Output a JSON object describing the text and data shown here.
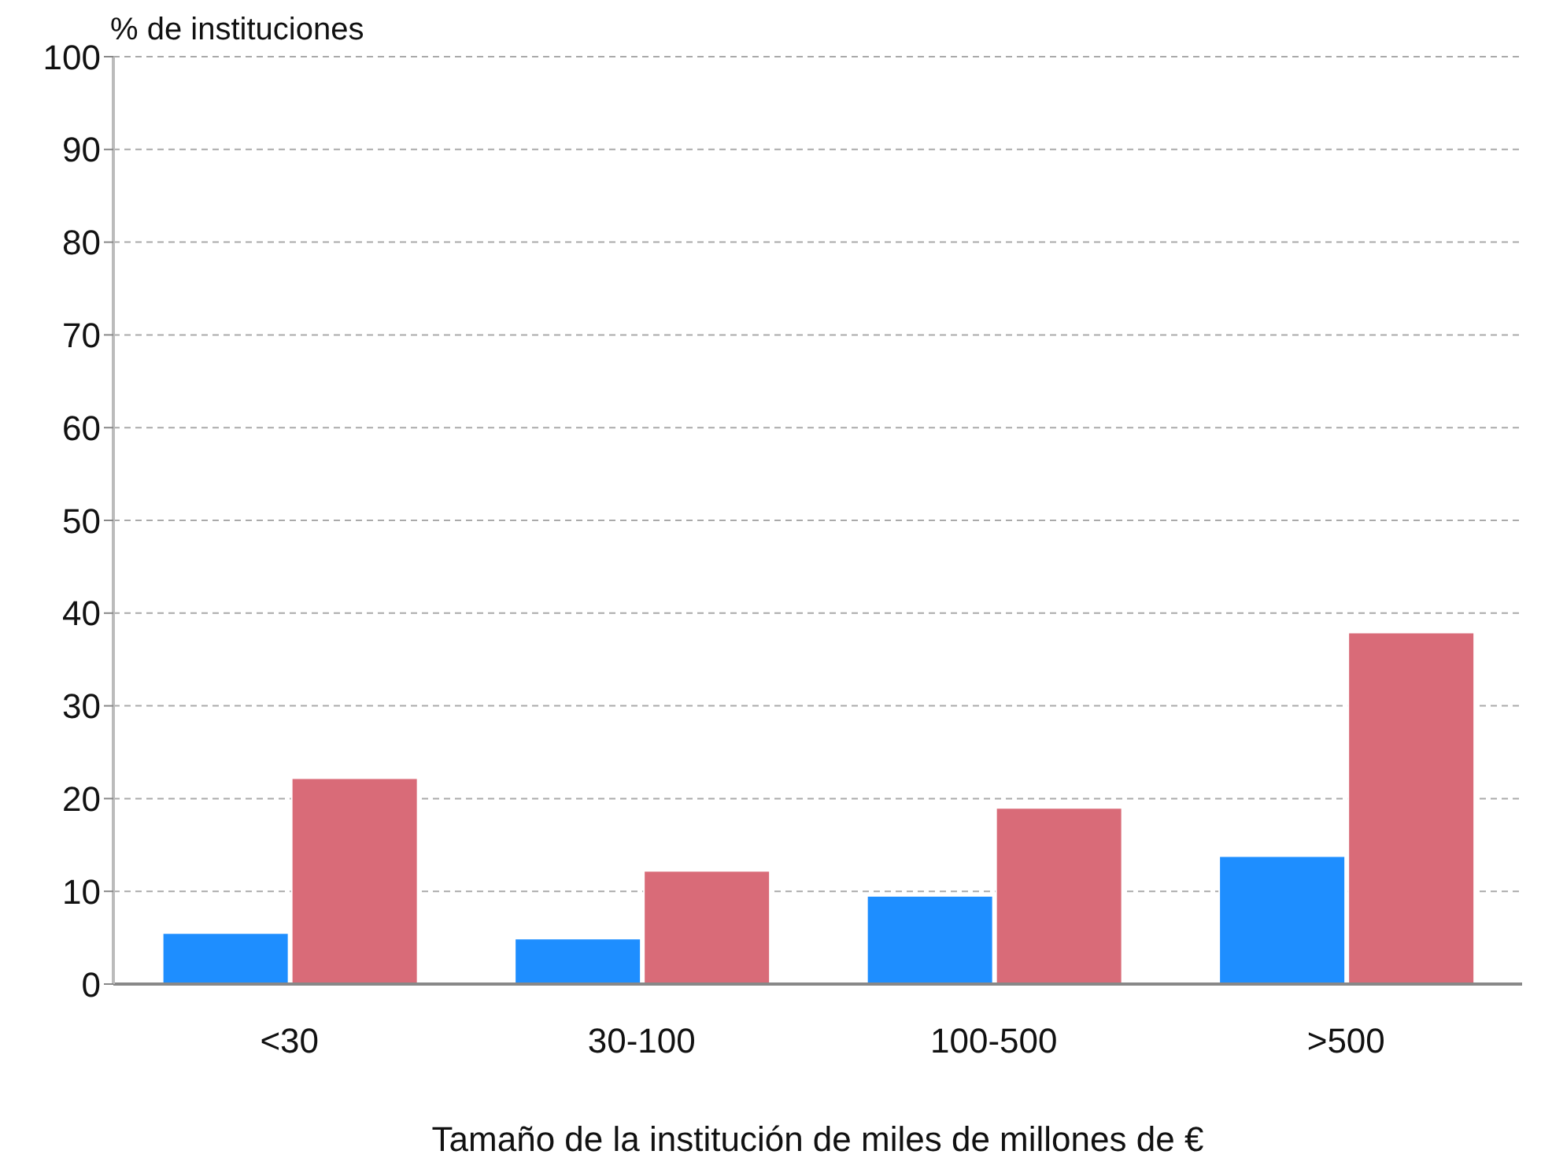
{
  "chart_data": {
    "type": "bar",
    "ylabel": "% de instituciones",
    "xlabel": "Tamaño de la institución de miles de millones de €",
    "categories": [
      "<30",
      "30-100",
      "100-500",
      ">500"
    ],
    "series": [
      {
        "color": "#1e8eff",
        "values": [
          5.5,
          4.9,
          9.5,
          13.8
        ]
      },
      {
        "color": "#d96b78",
        "values": [
          22.2,
          12.2,
          19.0,
          37.9
        ]
      }
    ],
    "ylim": [
      0,
      100
    ],
    "yticks": [
      0,
      10,
      20,
      30,
      40,
      50,
      60,
      70,
      80,
      90,
      100
    ],
    "grid": "y",
    "legend": false
  }
}
